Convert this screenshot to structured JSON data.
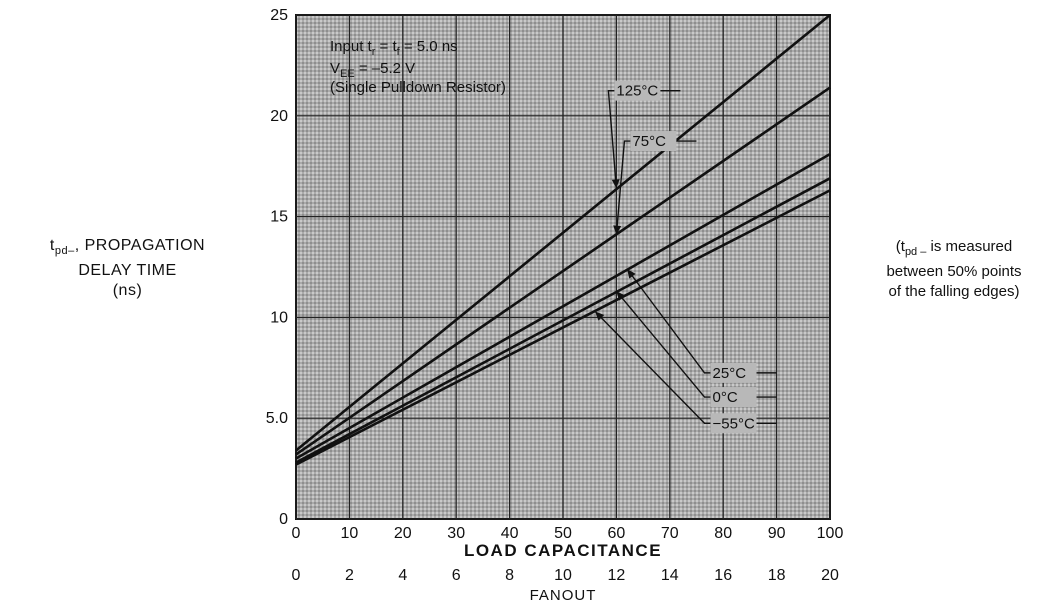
{
  "chart_data": {
    "type": "line",
    "ylabel": {
      "symbol": "t",
      "subscript": "pd–",
      "rest": ", PROPAGATION",
      "line2": "DELAY TIME",
      "line3": "(ns)"
    },
    "side_note": {
      "open": "(t",
      "subscript": "pd –",
      "rest": " is measured",
      "line2": "between 50% points",
      "line3": "of the falling edges)"
    },
    "conditions": {
      "line1": "Input t_r = t_f = 5.0 ns",
      "line2": "V_EE = –5.2 V",
      "line3": "(Single Pulldown Resistor)"
    },
    "xlabel": "LOAD CAPACITANCE",
    "xlabel2": "FANOUT",
    "x_ticks": [
      0,
      10,
      20,
      30,
      40,
      50,
      60,
      70,
      80,
      90,
      100
    ],
    "x_tick_labels": [
      "0",
      "10",
      "20",
      "30",
      "40",
      "50",
      "60",
      "70",
      "80",
      "90",
      "100"
    ],
    "fanout_tick_labels": [
      "0",
      "2",
      "4",
      "6",
      "8",
      "10",
      "12",
      "14",
      "16",
      "18",
      "20"
    ],
    "y_ticks": [
      0,
      5,
      10,
      15,
      20,
      25
    ],
    "y_tick_labels": [
      "0",
      "5.0",
      "10",
      "15",
      "20",
      "25"
    ],
    "xlim": [
      0,
      100
    ],
    "ylim": [
      0,
      25
    ],
    "grid": true,
    "series": [
      {
        "name": "125°C",
        "points": [
          [
            0,
            3.4
          ],
          [
            100,
            25.0
          ]
        ],
        "label_at": [
          60,
          21.0
        ],
        "arrow_at": [
          60,
          16.4
        ]
      },
      {
        "name": "75°C",
        "points": [
          [
            0,
            3.2
          ],
          [
            100,
            21.4
          ]
        ],
        "label_at": [
          63,
          18.5
        ],
        "arrow_at": [
          60,
          14.1
        ]
      },
      {
        "name": "25°C",
        "points": [
          [
            0,
            3.0
          ],
          [
            100,
            18.1
          ]
        ],
        "label_at": [
          78,
          7.0
        ],
        "arrow_at": [
          62,
          12.4
        ]
      },
      {
        "name": "0°C",
        "points": [
          [
            0,
            2.8
          ],
          [
            100,
            16.9
          ]
        ],
        "label_at": [
          78,
          5.8
        ],
        "arrow_at": [
          60,
          11.3
        ]
      },
      {
        "name": "−55°C",
        "points": [
          [
            0,
            2.7
          ],
          [
            100,
            16.3
          ]
        ],
        "label_at": [
          78,
          4.5
        ],
        "arrow_at": [
          56,
          10.3
        ]
      }
    ]
  }
}
